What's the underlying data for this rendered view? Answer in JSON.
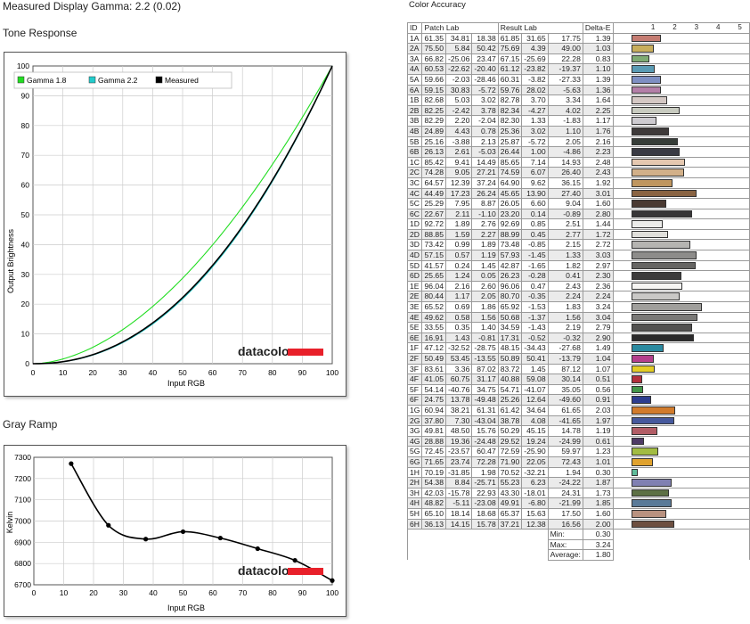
{
  "header": {
    "gamma_title": "Measured Display Gamma: 2.2 (0.02)",
    "color_accuracy_title": "Color Accuracy",
    "tone_title": "Tone Response",
    "gray_title": "Gray Ramp",
    "logo_text": "datacolor"
  },
  "colors": {
    "gamma18": "#22dd22",
    "gamma22": "#22cccc",
    "measured": "#000000",
    "logo_bar": "#e8202a"
  },
  "chart_data": [
    {
      "type": "line",
      "title": "Tone Response",
      "xlabel": "Input RGB",
      "ylabel": "Output Brightness",
      "xlim": [
        0,
        100
      ],
      "ylim": [
        0,
        100
      ],
      "xticks": [
        "0",
        "10",
        "20",
        "30",
        "40",
        "50",
        "60",
        "70",
        "80",
        "90",
        "100"
      ],
      "yticks": [
        "0",
        "10",
        "20",
        "30",
        "40",
        "50",
        "60",
        "70",
        "80",
        "90",
        "100"
      ],
      "grid": true,
      "legend": "top-left",
      "series": [
        {
          "name": "Gamma 1.8",
          "color": "#22dd22",
          "gamma": 1.8
        },
        {
          "name": "Gamma 2.2",
          "color": "#22cccc",
          "gamma": 2.2
        },
        {
          "name": "Measured",
          "color": "#000000",
          "gamma": 2.17
        }
      ]
    },
    {
      "type": "line",
      "title": "Gray Ramp",
      "xlabel": "Input RGB",
      "ylabel": "Kelvin",
      "xlim": [
        0,
        100
      ],
      "ylim": [
        6700,
        7300
      ],
      "xticks": [
        "0",
        "10",
        "20",
        "30",
        "40",
        "50",
        "60",
        "70",
        "80",
        "90",
        "100"
      ],
      "yticks": [
        "6700",
        "6800",
        "6900",
        "7000",
        "7100",
        "7200",
        "7300"
      ],
      "grid": true,
      "series": [
        {
          "name": "",
          "x": [
            12.5,
            25,
            37.5,
            50,
            62.5,
            75,
            87.5,
            100
          ],
          "y": [
            7270,
            6980,
            6915,
            6950,
            6920,
            6870,
            6815,
            6720
          ]
        }
      ]
    },
    {
      "type": "table",
      "title": "Color Accuracy",
      "columns": [
        "ID",
        "Patch Lab",
        "Result Lab",
        "Delta-E"
      ],
      "scale": [
        "1",
        "2",
        "3",
        "4",
        "5",
        "6",
        "7"
      ],
      "rows": [
        {
          "id": "1A",
          "patch": [
            "61.35",
            "34.81",
            "18.38"
          ],
          "result": [
            "61.85",
            "31.65",
            "17.75"
          ],
          "de": "1.39",
          "color": "#c57c72"
        },
        {
          "id": "2A",
          "patch": [
            "75.50",
            "5.84",
            "50.42"
          ],
          "result": [
            "75.69",
            "4.39",
            "49.00"
          ],
          "de": "1.03",
          "color": "#c8ae5c"
        },
        {
          "id": "3A",
          "patch": [
            "66.82",
            "-25.06",
            "23.47"
          ],
          "result": [
            "67.15",
            "-25.69",
            "22.28"
          ],
          "de": "0.83",
          "color": "#7fab73"
        },
        {
          "id": "4A",
          "patch": [
            "60.53",
            "-22.62",
            "-20.40"
          ],
          "result": [
            "61.12",
            "-23.82",
            "-19.37"
          ],
          "de": "1.10",
          "color": "#5a9bb4"
        },
        {
          "id": "5A",
          "patch": [
            "59.66",
            "-2.03",
            "-28.46"
          ],
          "result": [
            "60.31",
            "-3.82",
            "-27.33"
          ],
          "de": "1.39",
          "color": "#7e8fc2"
        },
        {
          "id": "6A",
          "patch": [
            "59.15",
            "30.83",
            "-5.72"
          ],
          "result": [
            "59.76",
            "28.02",
            "-5.63"
          ],
          "de": "1.36",
          "color": "#b47fa8"
        },
        {
          "id": "1B",
          "patch": [
            "82.68",
            "5.03",
            "3.02"
          ],
          "result": [
            "82.78",
            "3.70",
            "3.34"
          ],
          "de": "1.64",
          "color": "#d4c8c4"
        },
        {
          "id": "2B",
          "patch": [
            "82.25",
            "-2.42",
            "3.78"
          ],
          "result": [
            "82.34",
            "-4.27",
            "4.02"
          ],
          "de": "2.25",
          "color": "#c8cbc0"
        },
        {
          "id": "3B",
          "patch": [
            "82.29",
            "2.20",
            "-2.04"
          ],
          "result": [
            "82.30",
            "1.33",
            "-1.83"
          ],
          "de": "1.17",
          "color": "#cdcbd0"
        },
        {
          "id": "4B",
          "patch": [
            "24.89",
            "4.43",
            "0.78"
          ],
          "result": [
            "25.36",
            "3.02",
            "1.10"
          ],
          "de": "1.76",
          "color": "#3e3a3a"
        },
        {
          "id": "5B",
          "patch": [
            "25.16",
            "-3.88",
            "2.13"
          ],
          "result": [
            "25.87",
            "-5.72",
            "2.05"
          ],
          "de": "2.16",
          "color": "#363d38"
        },
        {
          "id": "6B",
          "patch": [
            "26.13",
            "2.61",
            "-5.03"
          ],
          "result": [
            "26.44",
            "1.00",
            "-4.86"
          ],
          "de": "2.23",
          "color": "#3a3b44"
        },
        {
          "id": "1C",
          "patch": [
            "85.42",
            "9.41",
            "14.49"
          ],
          "result": [
            "85.65",
            "7.14",
            "14.93"
          ],
          "de": "2.48",
          "color": "#e5c8b0"
        },
        {
          "id": "2C",
          "patch": [
            "74.28",
            "9.05",
            "27.21"
          ],
          "result": [
            "74.59",
            "6.07",
            "26.40"
          ],
          "de": "2.43",
          "color": "#d2b089"
        },
        {
          "id": "3C",
          "patch": [
            "64.57",
            "12.39",
            "37.24"
          ],
          "result": [
            "64.90",
            "9.62",
            "36.15"
          ],
          "de": "1.92",
          "color": "#bf965f"
        },
        {
          "id": "4C",
          "patch": [
            "44.49",
            "17.23",
            "26.24"
          ],
          "result": [
            "45.65",
            "13.90",
            "27.40"
          ],
          "de": "3.01",
          "color": "#8a6443"
        },
        {
          "id": "5C",
          "patch": [
            "25.29",
            "7.95",
            "8.87"
          ],
          "result": [
            "26.05",
            "6.60",
            "9.04"
          ],
          "de": "1.60",
          "color": "#4a3a32"
        },
        {
          "id": "6C",
          "patch": [
            "22.67",
            "2.11",
            "-1.10"
          ],
          "result": [
            "23.20",
            "0.14",
            "-0.89"
          ],
          "de": "2.80",
          "color": "#373637"
        },
        {
          "id": "1D",
          "patch": [
            "92.72",
            "1.89",
            "2.76"
          ],
          "result": [
            "92.69",
            "0.85",
            "2.51"
          ],
          "de": "1.44",
          "color": "#ececea"
        },
        {
          "id": "2D",
          "patch": [
            "88.85",
            "1.59",
            "2.27"
          ],
          "result": [
            "88.99",
            "0.45",
            "2.77"
          ],
          "de": "1.72",
          "color": "#e0dfdb"
        },
        {
          "id": "3D",
          "patch": [
            "73.42",
            "0.99",
            "1.89"
          ],
          "result": [
            "73.48",
            "-0.85",
            "2.15"
          ],
          "de": "2.72",
          "color": "#b5b4b1"
        },
        {
          "id": "4D",
          "patch": [
            "57.15",
            "0.57",
            "1.19"
          ],
          "result": [
            "57.93",
            "-1.45",
            "1.33"
          ],
          "de": "3.03",
          "color": "#8d8c8a"
        },
        {
          "id": "5D",
          "patch": [
            "41.57",
            "0.24",
            "1.45"
          ],
          "result": [
            "42.87",
            "-1.65",
            "1.82"
          ],
          "de": "2.97",
          "color": "#666563"
        },
        {
          "id": "6D",
          "patch": [
            "25.65",
            "1.24",
            "0.05"
          ],
          "result": [
            "26.23",
            "-0.28",
            "0.41"
          ],
          "de": "2.30",
          "color": "#3d3c3c"
        },
        {
          "id": "1E",
          "patch": [
            "96.04",
            "2.16",
            "2.60"
          ],
          "result": [
            "96.06",
            "0.47",
            "2.43"
          ],
          "de": "2.36",
          "color": "#f6f5f3"
        },
        {
          "id": "2E",
          "patch": [
            "80.44",
            "1.17",
            "2.05"
          ],
          "result": [
            "80.70",
            "-0.35",
            "2.24"
          ],
          "de": "2.24",
          "color": "#c9c8c6"
        },
        {
          "id": "3E",
          "patch": [
            "65.52",
            "0.69",
            "1.86"
          ],
          "result": [
            "65.92",
            "-1.53",
            "1.83"
          ],
          "de": "3.24",
          "color": "#a09f9c"
        },
        {
          "id": "4E",
          "patch": [
            "49.62",
            "0.58",
            "1.56"
          ],
          "result": [
            "50.68",
            "-1.37",
            "1.56"
          ],
          "de": "3.04",
          "color": "#7a7977"
        },
        {
          "id": "5E",
          "patch": [
            "33.55",
            "0.35",
            "1.40"
          ],
          "result": [
            "34.59",
            "-1.43",
            "2.19"
          ],
          "de": "2.79",
          "color": "#525150"
        },
        {
          "id": "6E",
          "patch": [
            "16.91",
            "1.43",
            "-0.81"
          ],
          "result": [
            "17.31",
            "-0.52",
            "-0.32"
          ],
          "de": "2.90",
          "color": "#2a292a"
        },
        {
          "id": "1F",
          "patch": [
            "47.12",
            "-32.52",
            "-28.75"
          ],
          "result": [
            "48.15",
            "-34.43",
            "-27.68"
          ],
          "de": "1.49",
          "color": "#2a8aa0"
        },
        {
          "id": "2F",
          "patch": [
            "50.49",
            "53.45",
            "-13.55"
          ],
          "result": [
            "50.89",
            "50.41",
            "-13.79"
          ],
          "de": "1.04",
          "color": "#b53f8c"
        },
        {
          "id": "3F",
          "patch": [
            "83.61",
            "3.36",
            "87.02"
          ],
          "result": [
            "83.72",
            "1.45",
            "87.12"
          ],
          "de": "1.07",
          "color": "#e3cc24"
        },
        {
          "id": "4F",
          "patch": [
            "41.05",
            "60.75",
            "31.17"
          ],
          "result": [
            "40.88",
            "59.08",
            "30.14"
          ],
          "de": "0.51",
          "color": "#b3303c"
        },
        {
          "id": "5F",
          "patch": [
            "54.14",
            "-40.76",
            "34.75"
          ],
          "result": [
            "54.71",
            "-41.07",
            "35.05"
          ],
          "de": "0.56",
          "color": "#43964a"
        },
        {
          "id": "6F",
          "patch": [
            "24.75",
            "13.78",
            "-49.48"
          ],
          "result": [
            "25.26",
            "12.64",
            "-49.60"
          ],
          "de": "0.91",
          "color": "#2d3d8f"
        },
        {
          "id": "1G",
          "patch": [
            "60.94",
            "38.21",
            "61.31"
          ],
          "result": [
            "61.42",
            "34.64",
            "61.65"
          ],
          "de": "2.03",
          "color": "#d17b2c"
        },
        {
          "id": "2G",
          "patch": [
            "37.80",
            "7.30",
            "-43.04"
          ],
          "result": [
            "38.78",
            "4.08",
            "-41.65"
          ],
          "de": "1.97",
          "color": "#46599d"
        },
        {
          "id": "3G",
          "patch": [
            "49.81",
            "48.50",
            "15.76"
          ],
          "result": [
            "50.29",
            "45.15",
            "14.78"
          ],
          "de": "1.19",
          "color": "#b25d66"
        },
        {
          "id": "4G",
          "patch": [
            "28.88",
            "19.36",
            "-24.48"
          ],
          "result": [
            "29.52",
            "19.24",
            "-24.99"
          ],
          "de": "0.61",
          "color": "#4f3b66"
        },
        {
          "id": "5G",
          "patch": [
            "72.45",
            "-23.57",
            "60.47"
          ],
          "result": [
            "72.59",
            "-25.90",
            "59.97"
          ],
          "de": "1.23",
          "color": "#a2bc42"
        },
        {
          "id": "6G",
          "patch": [
            "71.65",
            "23.74",
            "72.28"
          ],
          "result": [
            "71.90",
            "22.05",
            "72.43"
          ],
          "de": "1.01",
          "color": "#e0a22e"
        },
        {
          "id": "1H",
          "patch": [
            "70.19",
            "-31.85",
            "1.98"
          ],
          "result": [
            "70.52",
            "-32.21",
            "1.94"
          ],
          "de": "0.30",
          "color": "#5fbc9a"
        },
        {
          "id": "2H",
          "patch": [
            "54.38",
            "8.84",
            "-25.71"
          ],
          "result": [
            "55.23",
            "6.23",
            "-24.22"
          ],
          "de": "1.87",
          "color": "#8080b2"
        },
        {
          "id": "3H",
          "patch": [
            "42.03",
            "-15.78",
            "22.93"
          ],
          "result": [
            "43.30",
            "-18.01",
            "24.31"
          ],
          "de": "1.73",
          "color": "#5d7044"
        },
        {
          "id": "4H",
          "patch": [
            "48.82",
            "-5.11",
            "-23.08"
          ],
          "result": [
            "49.91",
            "-6.80",
            "-21.99"
          ],
          "de": "1.85",
          "color": "#5a7a98"
        },
        {
          "id": "5H",
          "patch": [
            "65.10",
            "18.14",
            "18.68"
          ],
          "result": [
            "65.37",
            "15.63",
            "17.50"
          ],
          "de": "1.60",
          "color": "#b99280"
        },
        {
          "id": "6H",
          "patch": [
            "36.13",
            "14.15",
            "15.78"
          ],
          "result": [
            "37.21",
            "12.38",
            "16.56"
          ],
          "de": "2.00",
          "color": "#6d4f40"
        }
      ],
      "summary": [
        {
          "label": "Min:",
          "value": "0.30"
        },
        {
          "label": "Max:",
          "value": "3.24"
        },
        {
          "label": "Average:",
          "value": "1.80"
        }
      ]
    }
  ]
}
